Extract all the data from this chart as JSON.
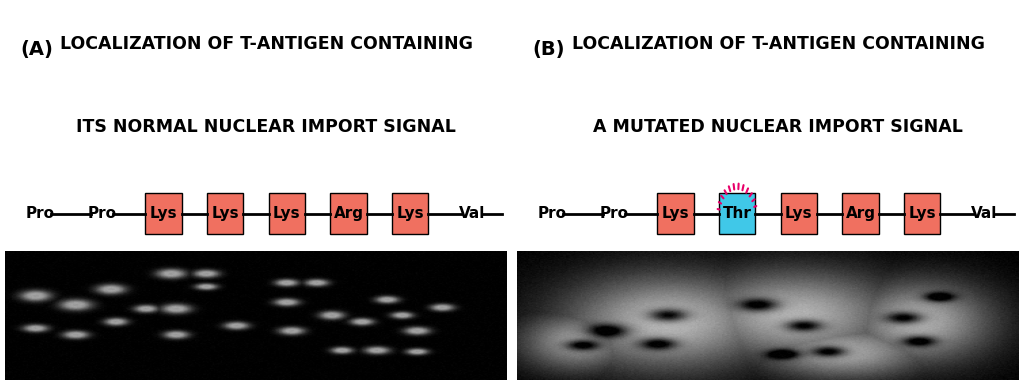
{
  "panel_A_title_line1": "LOCALIZATION OF T-ANTIGEN CONTAINING",
  "panel_A_title_line2": "ITS NORMAL NUCLEAR IMPORT SIGNAL",
  "panel_B_title_line1": "LOCALIZATION OF T-ANTIGEN CONTAINING",
  "panel_B_title_line2": "A MUTATED NUCLEAR IMPORT SIGNAL",
  "label_A": "(A)",
  "label_B": "(B)",
  "title_bg_color": "#c0c8c0",
  "seq_A": [
    "Pro",
    "Pro",
    "Lys",
    "Lys",
    "Lys",
    "Arg",
    "Lys",
    "Val"
  ],
  "seq_B": [
    "Pro",
    "Pro",
    "Lys",
    "Thr",
    "Lys",
    "Arg",
    "Lys",
    "Val"
  ],
  "highlighted_A": [
    2,
    3,
    4,
    5,
    6
  ],
  "highlighted_B_orange": [
    2,
    4,
    5,
    6
  ],
  "highlighted_B_blue": [
    3
  ],
  "box_color_orange": "#f07060",
  "box_color_blue": "#40c8e8",
  "dash_color": "#000000",
  "bg_color": "#ffffff",
  "ray_color": "#e8006a",
  "title_fontsize": 12.5,
  "label_fontsize": 14,
  "seq_fontsize": 11
}
